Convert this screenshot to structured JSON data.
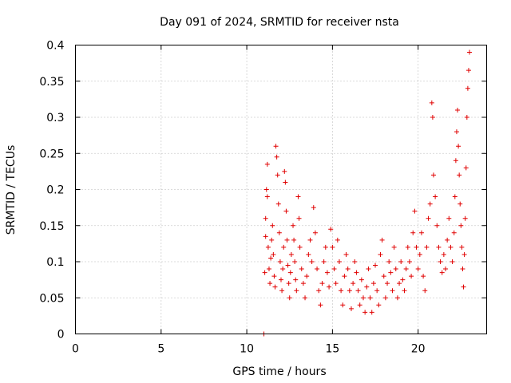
{
  "chart_data": {
    "type": "scatter",
    "title": "Day 091 of 2024, SRMTID for receiver nsta",
    "xlabel": "GPS time / hours",
    "ylabel": "SRMTID / TECUs",
    "xlim": [
      0,
      24
    ],
    "ylim": [
      0,
      0.4
    ],
    "xticks": [
      0,
      5,
      10,
      15,
      20
    ],
    "xtick_labels": [
      "0",
      "5",
      "10",
      "15",
      "20"
    ],
    "yticks": [
      0,
      0.05,
      0.1,
      0.15,
      0.2,
      0.25,
      0.3,
      0.35,
      0.4
    ],
    "ytick_labels": [
      "0",
      "0.05",
      "0.1",
      "0.15",
      "0.2",
      "0.25",
      "0.3",
      "0.35",
      "0.4"
    ],
    "grid": true,
    "marker": "+",
    "color": "#e00000",
    "series": [
      {
        "name": "SRMTID",
        "points": [
          [
            11.0,
            0.0
          ],
          [
            11.05,
            0.085
          ],
          [
            11.1,
            0.135
          ],
          [
            11.1,
            0.16
          ],
          [
            11.15,
            0.2
          ],
          [
            11.2,
            0.235
          ],
          [
            11.2,
            0.19
          ],
          [
            11.25,
            0.12
          ],
          [
            11.3,
            0.09
          ],
          [
            11.35,
            0.07
          ],
          [
            11.4,
            0.105
          ],
          [
            11.45,
            0.13
          ],
          [
            11.5,
            0.15
          ],
          [
            11.55,
            0.11
          ],
          [
            11.6,
            0.08
          ],
          [
            11.65,
            0.065
          ],
          [
            11.7,
            0.26
          ],
          [
            11.75,
            0.245
          ],
          [
            11.8,
            0.22
          ],
          [
            11.85,
            0.18
          ],
          [
            11.9,
            0.14
          ],
          [
            11.95,
            0.1
          ],
          [
            12.0,
            0.075
          ],
          [
            12.05,
            0.06
          ],
          [
            12.1,
            0.09
          ],
          [
            12.15,
            0.12
          ],
          [
            12.2,
            0.225
          ],
          [
            12.25,
            0.21
          ],
          [
            12.3,
            0.17
          ],
          [
            12.35,
            0.13
          ],
          [
            12.4,
            0.095
          ],
          [
            12.45,
            0.07
          ],
          [
            12.5,
            0.05
          ],
          [
            12.55,
            0.085
          ],
          [
            12.6,
            0.11
          ],
          [
            12.7,
            0.15
          ],
          [
            12.75,
            0.13
          ],
          [
            12.8,
            0.1
          ],
          [
            12.85,
            0.075
          ],
          [
            12.9,
            0.06
          ],
          [
            13.0,
            0.19
          ],
          [
            13.05,
            0.16
          ],
          [
            13.1,
            0.12
          ],
          [
            13.2,
            0.09
          ],
          [
            13.3,
            0.07
          ],
          [
            13.4,
            0.05
          ],
          [
            13.5,
            0.08
          ],
          [
            13.6,
            0.11
          ],
          [
            13.7,
            0.13
          ],
          [
            13.8,
            0.1
          ],
          [
            13.9,
            0.175
          ],
          [
            14.0,
            0.14
          ],
          [
            14.1,
            0.09
          ],
          [
            14.2,
            0.06
          ],
          [
            14.3,
            0.04
          ],
          [
            14.4,
            0.07
          ],
          [
            14.5,
            0.1
          ],
          [
            14.6,
            0.12
          ],
          [
            14.7,
            0.085
          ],
          [
            14.8,
            0.065
          ],
          [
            14.9,
            0.145
          ],
          [
            15.0,
            0.12
          ],
          [
            15.1,
            0.09
          ],
          [
            15.2,
            0.07
          ],
          [
            15.3,
            0.13
          ],
          [
            15.4,
            0.1
          ],
          [
            15.5,
            0.06
          ],
          [
            15.6,
            0.04
          ],
          [
            15.7,
            0.08
          ],
          [
            15.8,
            0.11
          ],
          [
            15.9,
            0.09
          ],
          [
            16.0,
            0.06
          ],
          [
            16.1,
            0.035
          ],
          [
            16.2,
            0.07
          ],
          [
            16.3,
            0.1
          ],
          [
            16.4,
            0.085
          ],
          [
            16.5,
            0.06
          ],
          [
            16.6,
            0.04
          ],
          [
            16.7,
            0.075
          ],
          [
            16.8,
            0.05
          ],
          [
            16.9,
            0.03
          ],
          [
            17.0,
            0.065
          ],
          [
            17.1,
            0.09
          ],
          [
            17.2,
            0.05
          ],
          [
            17.3,
            0.03
          ],
          [
            17.4,
            0.07
          ],
          [
            17.5,
            0.095
          ],
          [
            17.6,
            0.06
          ],
          [
            17.7,
            0.04
          ],
          [
            17.8,
            0.11
          ],
          [
            17.9,
            0.13
          ],
          [
            18.0,
            0.08
          ],
          [
            18.1,
            0.05
          ],
          [
            18.2,
            0.07
          ],
          [
            18.3,
            0.1
          ],
          [
            18.4,
            0.085
          ],
          [
            18.5,
            0.06
          ],
          [
            18.6,
            0.12
          ],
          [
            18.7,
            0.09
          ],
          [
            18.8,
            0.05
          ],
          [
            18.9,
            0.07
          ],
          [
            19.0,
            0.1
          ],
          [
            19.1,
            0.075
          ],
          [
            19.2,
            0.06
          ],
          [
            19.3,
            0.09
          ],
          [
            19.4,
            0.12
          ],
          [
            19.5,
            0.1
          ],
          [
            19.6,
            0.08
          ],
          [
            19.7,
            0.14
          ],
          [
            19.8,
            0.17
          ],
          [
            19.9,
            0.12
          ],
          [
            20.0,
            0.09
          ],
          [
            20.1,
            0.11
          ],
          [
            20.2,
            0.14
          ],
          [
            20.3,
            0.08
          ],
          [
            20.4,
            0.06
          ],
          [
            20.5,
            0.12
          ],
          [
            20.6,
            0.16
          ],
          [
            20.7,
            0.18
          ],
          [
            20.8,
            0.32
          ],
          [
            20.85,
            0.3
          ],
          [
            20.9,
            0.22
          ],
          [
            21.0,
            0.19
          ],
          [
            21.1,
            0.15
          ],
          [
            21.2,
            0.12
          ],
          [
            21.3,
            0.1
          ],
          [
            21.4,
            0.085
          ],
          [
            21.5,
            0.11
          ],
          [
            21.6,
            0.09
          ],
          [
            21.7,
            0.13
          ],
          [
            21.8,
            0.16
          ],
          [
            21.9,
            0.12
          ],
          [
            22.0,
            0.1
          ],
          [
            22.1,
            0.14
          ],
          [
            22.15,
            0.19
          ],
          [
            22.2,
            0.24
          ],
          [
            22.25,
            0.28
          ],
          [
            22.3,
            0.31
          ],
          [
            22.35,
            0.26
          ],
          [
            22.4,
            0.22
          ],
          [
            22.45,
            0.18
          ],
          [
            22.5,
            0.15
          ],
          [
            22.55,
            0.12
          ],
          [
            22.6,
            0.09
          ],
          [
            22.65,
            0.065
          ],
          [
            22.7,
            0.11
          ],
          [
            22.75,
            0.16
          ],
          [
            22.8,
            0.23
          ],
          [
            22.85,
            0.3
          ],
          [
            22.9,
            0.34
          ],
          [
            22.95,
            0.365
          ],
          [
            23.0,
            0.39
          ]
        ]
      }
    ]
  }
}
